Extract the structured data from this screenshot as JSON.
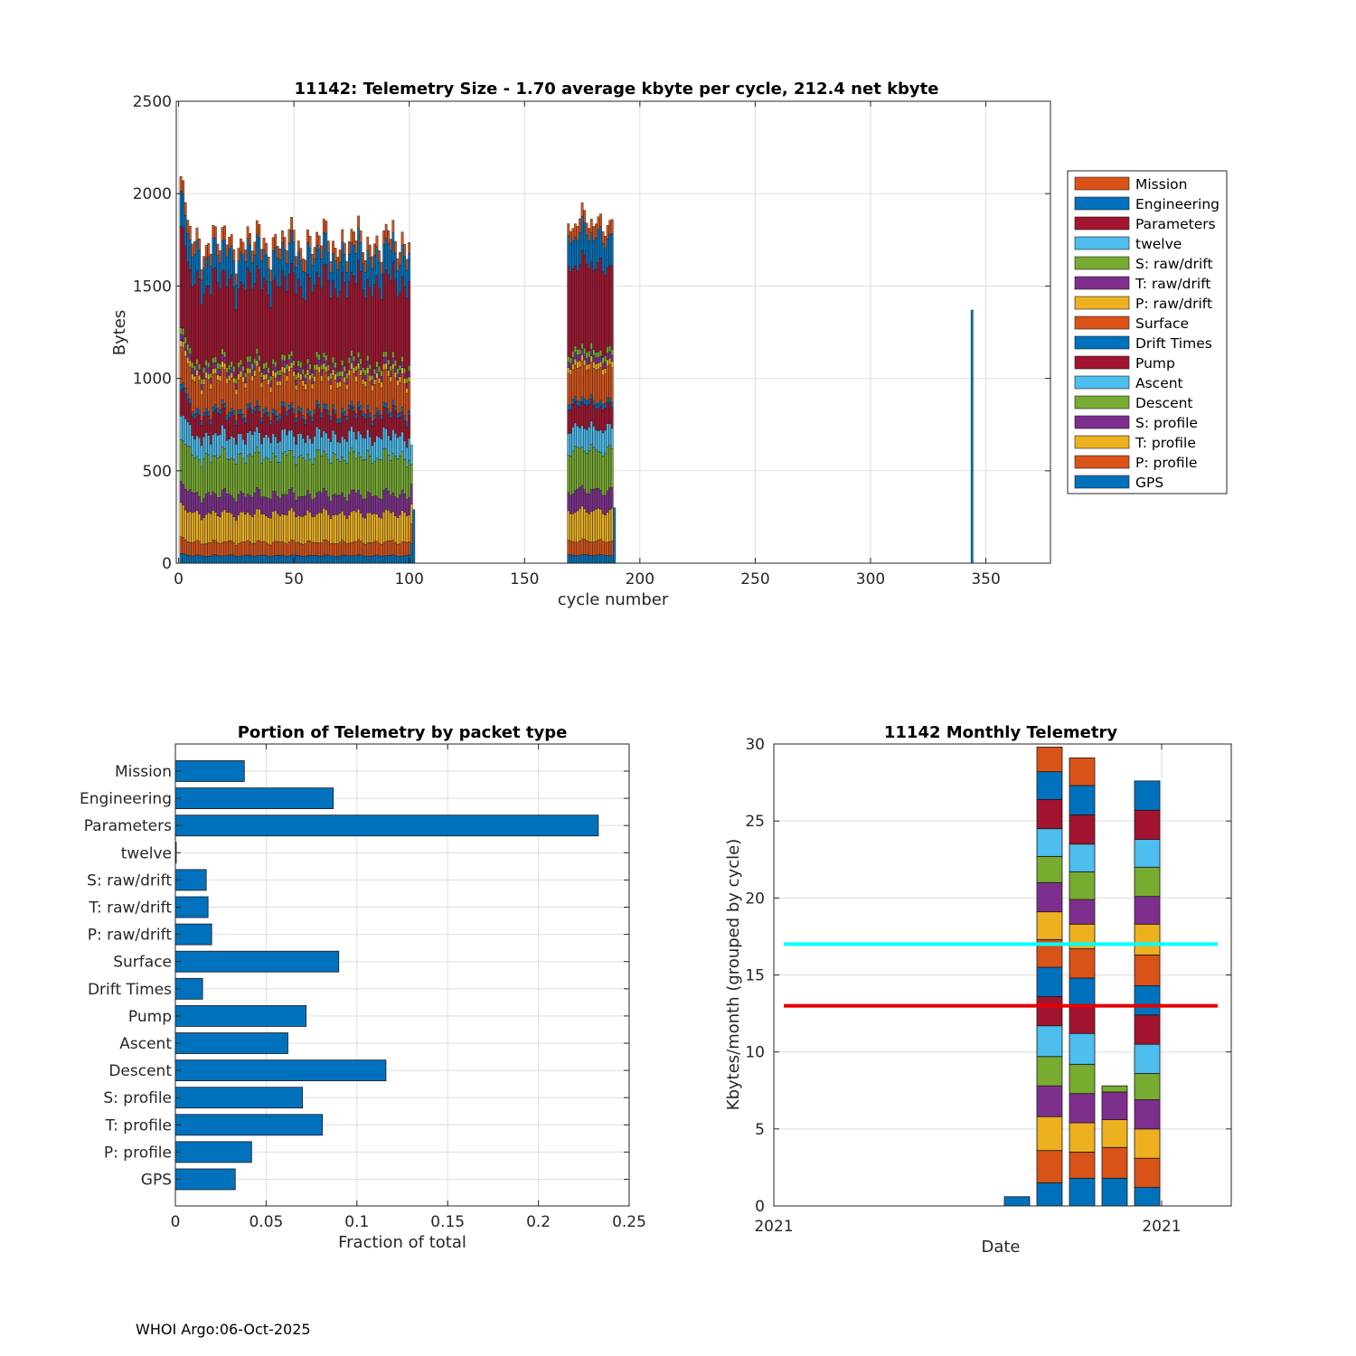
{
  "footer": "WHOI Argo:06-Oct-2025",
  "colors": {
    "palette": [
      "#0072BD",
      "#D95319",
      "#EDB120",
      "#7E2F8E",
      "#77AC30",
      "#4DBEEE",
      "#A2142F"
    ],
    "hbar": "#0072BD",
    "cyan_line": "#00FFFF",
    "red_line": "#E60000",
    "grid": "#dedede",
    "axis": "#262626"
  },
  "chart_data": [
    {
      "id": "telemetry-size",
      "type": "bar",
      "stacked": true,
      "title": "11142: Telemetry Size - 1.70 average kbyte per cycle,  212.4 net kbyte",
      "xlabel": "cycle number",
      "ylabel": "Bytes",
      "xlim": [
        -1,
        378
      ],
      "ylim": [
        0,
        2500
      ],
      "xticks": [
        0,
        50,
        100,
        150,
        200,
        250,
        300,
        350
      ],
      "yticks": [
        0,
        500,
        1000,
        1500,
        2000,
        2500
      ],
      "grid": true,
      "legend_position": "right",
      "legend": [
        "Mission",
        "Engineering",
        "Parameters",
        "twelve",
        "S: raw/drift",
        "T: raw/drift",
        "P: raw/drift",
        "Surface",
        "Drift Times",
        "Pump",
        "Ascent",
        "Descent",
        "S: profile",
        "T: profile",
        "P: profile",
        "GPS"
      ],
      "cycle_groups": [
        {
          "first_cycle": 1,
          "last_cycle": 100
        },
        {
          "first_cycle": 169,
          "last_cycle": 188
        }
      ],
      "component_means_bytes": [
        {
          "name": "GPS",
          "value": 40
        },
        {
          "name": "P: profile",
          "value": 70
        },
        {
          "name": "T: profile",
          "value": 150
        },
        {
          "name": "S: profile",
          "value": 100
        },
        {
          "name": "Descent",
          "value": 200
        },
        {
          "name": "Ascent",
          "value": 110
        },
        {
          "name": "Pump",
          "value": 110
        },
        {
          "name": "Drift Times",
          "value": 25
        },
        {
          "name": "Surface",
          "value": 160
        },
        {
          "name": "P: raw/drift",
          "value": 30
        },
        {
          "name": "T: raw/drift",
          "value": 30
        },
        {
          "name": "S: raw/drift",
          "value": 30
        },
        {
          "name": "twelve",
          "value": 0
        },
        {
          "name": "Parameters",
          "value": 420
        },
        {
          "name": "Engineering",
          "value": 150
        },
        {
          "name": "Mission",
          "value": 65
        }
      ],
      "totals_bytes": {
        "cycles_1_5": [
          2050,
          2060,
          1980,
          1900,
          1850
        ],
        "cycles_6_100_range": [
          1600,
          1880
        ],
        "cycle_101": 640,
        "cycle_102": 290,
        "cycles_169_188_range": [
          1780,
          1920
        ],
        "cycle_189": 300,
        "cycle_344": 1370
      }
    },
    {
      "id": "portion-by-packet",
      "type": "bar",
      "orientation": "horizontal",
      "title": "Portion of Telemetry by packet type",
      "xlabel": "Fraction of total",
      "xlim": [
        0,
        0.25
      ],
      "xticks": [
        0,
        0.05,
        0.1,
        0.15,
        0.2,
        0.25
      ],
      "xtick_labels": [
        "0",
        "0.05",
        "0.1",
        "0.15",
        "0.2",
        "0.25"
      ],
      "grid": true,
      "categories": [
        "Mission",
        "Engineering",
        "Parameters",
        "twelve",
        "S: raw/drift",
        "T: raw/drift",
        "P: raw/drift",
        "Surface",
        "Drift Times",
        "Pump",
        "Ascent",
        "Descent",
        "S: profile",
        "T: profile",
        "P: profile",
        "GPS"
      ],
      "values": [
        0.038,
        0.087,
        0.233,
        0.0005,
        0.017,
        0.018,
        0.02,
        0.09,
        0.015,
        0.072,
        0.062,
        0.116,
        0.07,
        0.081,
        0.042,
        0.033
      ]
    },
    {
      "id": "monthly-telemetry",
      "type": "bar",
      "stacked": true,
      "title": "11142 Monthly Telemetry",
      "xlabel": "Date",
      "ylabel": "Kbytes/month (grouped by cycle)",
      "ylim": [
        0,
        30
      ],
      "yticks": [
        0,
        5,
        10,
        15,
        20,
        25,
        30
      ],
      "xtick_labels": [
        "2021",
        "2021"
      ],
      "grid": true,
      "reference_lines": [
        {
          "name": "cyan",
          "y": 17
        },
        {
          "name": "red",
          "y": 13
        }
      ],
      "bars": [
        {
          "segments": [
            0.6
          ]
        },
        {
          "segments": [
            1.5,
            2.1,
            2.2,
            2.0,
            1.9,
            2.0,
            1.9,
            1.9,
            1.8,
            1.8,
            1.9,
            1.7,
            1.8,
            1.9,
            1.8,
            1.6
          ]
        },
        {
          "segments": [
            1.8,
            1.7,
            1.9,
            1.9,
            1.9,
            2.0,
            1.8,
            1.8,
            1.9,
            1.6,
            1.6,
            1.8,
            1.8,
            1.9,
            1.9,
            1.8
          ]
        },
        {
          "segments": [
            1.8,
            2.0,
            1.8,
            1.8,
            0.4
          ]
        },
        {
          "segments": [
            1.2,
            1.9,
            1.9,
            1.9,
            1.7,
            1.9,
            1.9,
            1.9,
            2.0,
            2.0,
            1.8,
            1.9,
            1.8,
            1.9,
            1.9
          ]
        }
      ]
    }
  ]
}
